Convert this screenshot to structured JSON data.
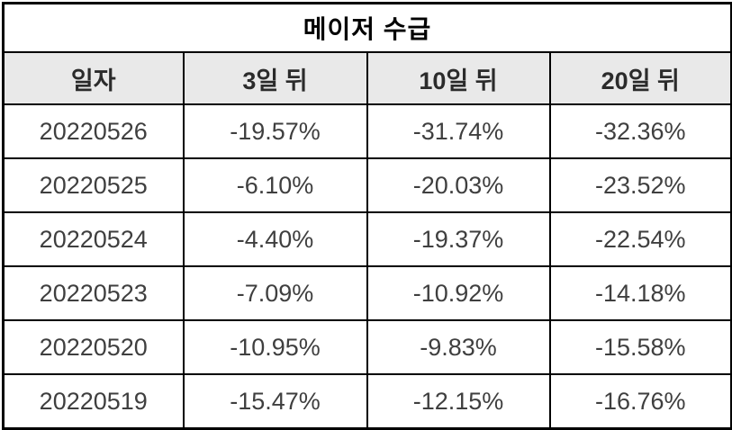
{
  "title": "메이저 수급",
  "chart_data": {
    "type": "table",
    "title": "메이저 수급",
    "columns": [
      "일자",
      "3일 뒤",
      "10일 뒤",
      "20일 뒤"
    ],
    "rows": [
      [
        "20220526",
        "-19.57%",
        "-31.74%",
        "-32.36%"
      ],
      [
        "20220525",
        "-6.10%",
        "-20.03%",
        "-23.52%"
      ],
      [
        "20220524",
        "-4.40%",
        "-19.37%",
        "-22.54%"
      ],
      [
        "20220523",
        "-7.09%",
        "-10.92%",
        "-14.18%"
      ],
      [
        "20220520",
        "-10.95%",
        "-9.83%",
        "-15.58%"
      ],
      [
        "20220519",
        "-15.47%",
        "-12.15%",
        "-16.76%"
      ]
    ],
    "layout": {
      "header_background": "#e9e9e9",
      "border_color": "#000000",
      "value_columns_unit": "%"
    }
  }
}
